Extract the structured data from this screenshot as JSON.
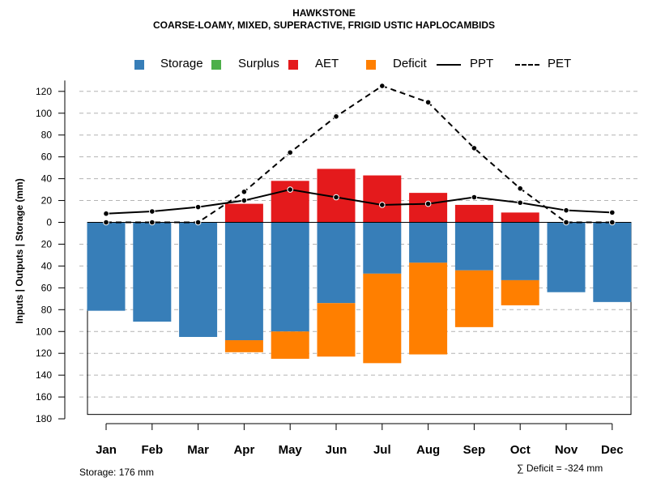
{
  "chart_data": {
    "type": "bar",
    "title": "HAWKSTONE",
    "subtitle": "COARSE-LOAMY, MIXED, SUPERACTIVE, FRIGID USTIC HAPLOCAMBIDS",
    "ylabel": "Inputs | Outputs | Storage    (mm)",
    "categories": [
      "Jan",
      "Feb",
      "Mar",
      "Apr",
      "May",
      "Jun",
      "Jul",
      "Aug",
      "Sep",
      "Oct",
      "Nov",
      "Dec"
    ],
    "ylim": [
      -180,
      130
    ],
    "yticks": [
      120,
      100,
      80,
      60,
      40,
      20,
      0,
      -20,
      -40,
      -60,
      -80,
      -100,
      -120,
      -140,
      -160,
      -180
    ],
    "ytick_labels": [
      "120",
      "100",
      "80",
      "60",
      "40",
      "20",
      "0",
      "20",
      "40",
      "60",
      "80",
      "100",
      "120",
      "140",
      "160",
      "180"
    ],
    "grid": true,
    "series": [
      {
        "name": "Storage",
        "color": "#377EB8",
        "kind": "bar-below",
        "values": [
          81,
          91,
          105,
          108,
          100,
          74,
          47,
          37,
          44,
          53,
          64,
          73
        ]
      },
      {
        "name": "Surplus",
        "color": "#4DAF4A",
        "kind": "bar-above",
        "values": [
          0,
          0,
          0,
          0,
          0,
          0,
          0,
          0,
          0,
          0,
          0,
          0
        ]
      },
      {
        "name": "AET",
        "color": "#E41A1C",
        "kind": "bar-above",
        "values": [
          0,
          0,
          0,
          17,
          38,
          49,
          43,
          27,
          16,
          9,
          0,
          0
        ]
      },
      {
        "name": "Deficit",
        "color": "#FF7F00",
        "kind": "bar-below-stacked",
        "values": [
          0,
          0,
          0,
          11,
          25,
          49,
          82,
          84,
          52,
          23,
          0,
          0
        ]
      },
      {
        "name": "PPT",
        "color": "#000000",
        "kind": "line-solid",
        "values": [
          8,
          10,
          14,
          20,
          30,
          23,
          16,
          17,
          23,
          18,
          11,
          9
        ]
      },
      {
        "name": "PET",
        "color": "#000000",
        "kind": "line-dashed",
        "values": [
          0,
          0,
          0,
          28,
          64,
          97,
          125,
          110,
          68,
          31,
          0,
          0
        ]
      }
    ],
    "storage_total": 176,
    "annotations": {
      "storage": "Storage: 176 mm",
      "deficit": "∑ Deficit = -324 mm"
    }
  },
  "legend": {
    "storage": "Storage",
    "surplus": "Surplus",
    "aet": "AET",
    "deficit": "Deficit",
    "ppt": "PPT",
    "pet": "PET"
  }
}
